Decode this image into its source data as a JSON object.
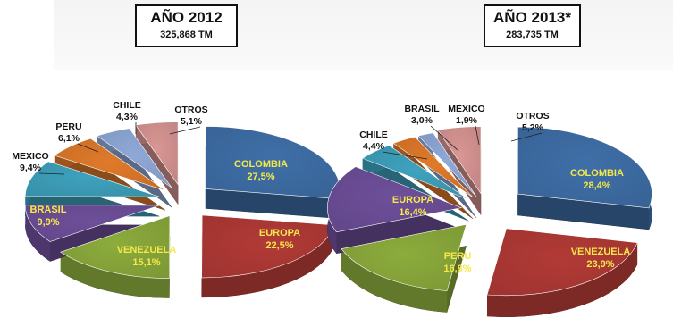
{
  "headers": [
    {
      "year": "AÑO 2012",
      "total": "325,868 TM"
    },
    {
      "year": "AÑO 2013*",
      "total": "283,735 TM"
    }
  ],
  "chart_data": [
    {
      "type": "pie",
      "title": "AÑO 2012",
      "subtitle": "325,868 TM",
      "slices": [
        {
          "label": "COLOMBIA",
          "value": 27.5,
          "display": "27,5%",
          "color": "#3f6fa8"
        },
        {
          "label": "EUROPA",
          "value": 22.5,
          "display": "22,5%",
          "color": "#b23a36"
        },
        {
          "label": "VENEZUELA",
          "value": 15.1,
          "display": "15,1%",
          "color": "#8cac3c"
        },
        {
          "label": "BRASIL",
          "value": 9.9,
          "display": "9,9%",
          "color": "#6e4f9a"
        },
        {
          "label": "MEXICO",
          "value": 9.4,
          "display": "9,4%",
          "color": "#3ea2be"
        },
        {
          "label": "PERU",
          "value": 6.1,
          "display": "6,1%",
          "color": "#e07a2a"
        },
        {
          "label": "CHILE",
          "value": 4.3,
          "display": "4,3%",
          "color": "#8fa9d8"
        },
        {
          "label": "OTROS",
          "value": 5.1,
          "display": "5,1%",
          "color": "#d99694"
        }
      ]
    },
    {
      "type": "pie",
      "title": "AÑO 2013*",
      "subtitle": "283,735 TM",
      "slices": [
        {
          "label": "COLOMBIA",
          "value": 28.4,
          "display": "28,4%",
          "color": "#3f6fa8"
        },
        {
          "label": "VENEZUELA",
          "value": 23.9,
          "display": "23,9%",
          "color": "#b23a36"
        },
        {
          "label": "PERU",
          "value": 16.8,
          "display": "16,8%",
          "color": "#8cac3c"
        },
        {
          "label": "EUROPA",
          "value": 16.4,
          "display": "16,4%",
          "color": "#6e4f9a"
        },
        {
          "label": "CHILE",
          "value": 4.4,
          "display": "4,4%",
          "color": "#3ea2be"
        },
        {
          "label": "BRASIL",
          "value": 3.0,
          "display": "3,0%",
          "color": "#e07a2a"
        },
        {
          "label": "MEXICO",
          "value": 1.9,
          "display": "1,9%",
          "color": "#8fa9d8"
        },
        {
          "label": "OTROS",
          "value": 5.2,
          "display": "5,2%",
          "color": "#d99694"
        }
      ]
    }
  ]
}
